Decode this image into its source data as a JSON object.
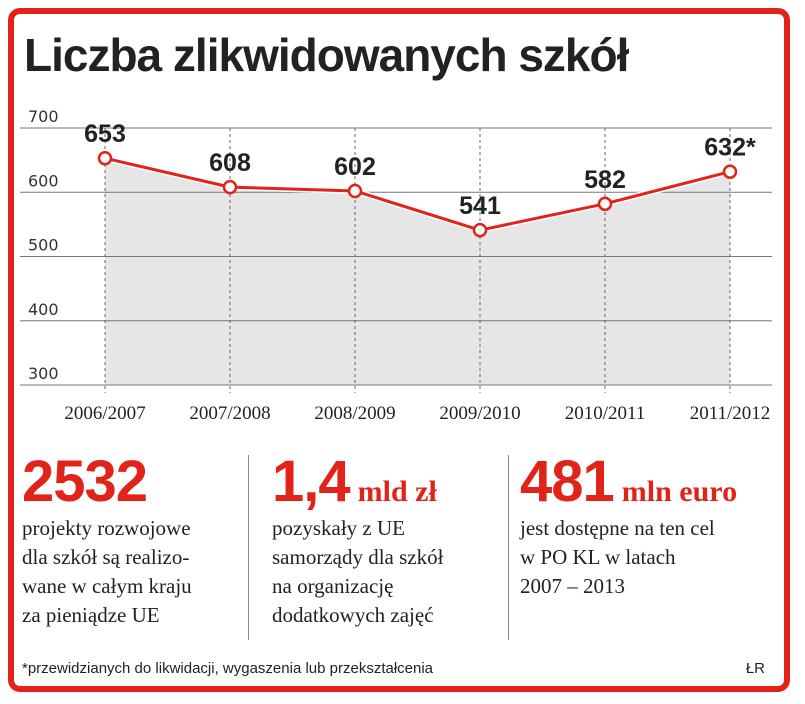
{
  "colors": {
    "accent": "#e2231a",
    "area": "#e6e6e6",
    "line": "#e2231a",
    "grid": "#777777"
  },
  "chart_data": {
    "type": "line",
    "title": "Liczba zlikwidowanych szkół",
    "categories": [
      "2006/2007",
      "2007/2008",
      "2008/2009",
      "2009/2010",
      "2010/2011",
      "2011/2012"
    ],
    "values": [
      653,
      608,
      602,
      541,
      582,
      632
    ],
    "data_labels": [
      "653",
      "608",
      "602",
      "541",
      "582",
      "632*"
    ],
    "yticks": [
      300,
      400,
      500,
      600,
      700
    ],
    "ylim": [
      300,
      700
    ],
    "xlabel": "",
    "ylabel": "",
    "grid": true,
    "area_fill": true
  },
  "stats": [
    {
      "number": "2532",
      "unit": "",
      "desc": "projekty rozwojowe\ndla szkół są realizo-\nwane w całym kraju\nza pieniądze UE"
    },
    {
      "number": "1,4",
      "unit": "mld zł",
      "desc": "pozyskały z UE\nsamorządy dla szkół\nna organizację\ndodatkowych zajęć"
    },
    {
      "number": "481",
      "unit": "mln euro",
      "desc": "jest dostępne na ten cel\nw PO KL w latach\n2007 – 2013"
    }
  ],
  "footnote": "*przewidzianych do likwidacji, wygaszenia lub przekształcenia",
  "credit": "ŁR"
}
